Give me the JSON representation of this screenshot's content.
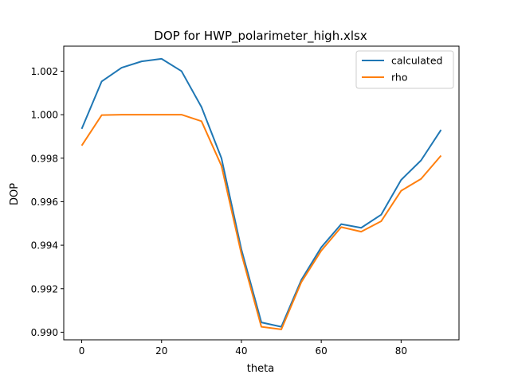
{
  "chart_data": {
    "type": "line",
    "title": "DOP for HWP_polarimeter_high.xlsx",
    "xlabel": "theta",
    "ylabel": "DOP",
    "xlim": [
      -4.5,
      94.5
    ],
    "ylim": [
      0.98965,
      1.00315
    ],
    "xticks": [
      0,
      20,
      40,
      60,
      80
    ],
    "xtick_labels": [
      "0",
      "20",
      "40",
      "60",
      "80"
    ],
    "yticks": [
      0.99,
      0.992,
      0.994,
      0.996,
      0.998,
      1.0,
      1.002
    ],
    "ytick_labels": [
      "0.990",
      "0.992",
      "0.994",
      "0.996",
      "0.998",
      "1.000",
      "1.002"
    ],
    "grid": false,
    "legend_position": "top-right",
    "x": [
      0,
      5,
      10,
      15,
      20,
      25,
      30,
      35,
      40,
      45,
      50,
      55,
      60,
      65,
      70,
      75,
      80,
      85,
      90
    ],
    "series": [
      {
        "name": "calculated",
        "color": "#1f77b4",
        "values": [
          0.99935,
          1.00153,
          1.00216,
          1.00245,
          1.00257,
          1.002,
          1.00035,
          0.998,
          0.9938,
          0.99045,
          0.99025,
          0.9924,
          0.9939,
          0.99497,
          0.9948,
          0.9954,
          0.997,
          0.9979,
          0.9993
        ]
      },
      {
        "name": "rho",
        "color": "#ff7f0e",
        "values": [
          0.99858,
          0.99998,
          1.0,
          1.0,
          1.0,
          1.0,
          0.9997,
          0.99765,
          0.9936,
          0.99025,
          0.99013,
          0.9923,
          0.99375,
          0.99483,
          0.99462,
          0.9951,
          0.9965,
          0.99705,
          0.99812
        ]
      }
    ]
  }
}
